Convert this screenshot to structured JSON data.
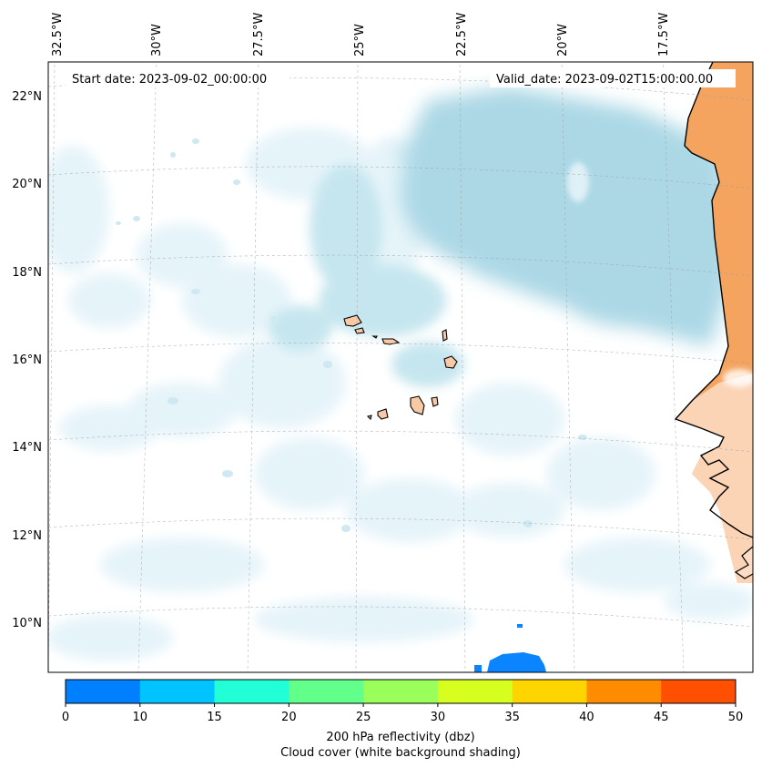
{
  "header": {
    "start_label": "Start date: 2023-09-02_00:00:00",
    "valid_label": "Valid_date: 2023-09-02T15:00:00.00"
  },
  "map": {
    "top_longitude_labels": [
      "32.5°W",
      "30°W",
      "27.5°W",
      "25°W",
      "22.5°W",
      "20°W",
      "17.5°W"
    ],
    "left_latitude_labels": [
      "22°N",
      "20°N",
      "18°N",
      "16°N",
      "14°N",
      "12°N",
      "10°N"
    ],
    "gridlines": true,
    "projection": "Lambert conformal (curved graticule)",
    "layers": {
      "cloud_cover_shading": "light blue / white",
      "land": "Africa coast (orange), Cape Verde islands (peach)"
    }
  },
  "colorbar": {
    "tick_labels": [
      "0",
      "10",
      "15",
      "20",
      "25",
      "30",
      "35",
      "40",
      "45",
      "50"
    ],
    "colors": [
      "#0080ff",
      "#00c3ff",
      "#22ffd6",
      "#62ff8a",
      "#9aff5a",
      "#d6ff1f",
      "#ffd500",
      "#ff8c00",
      "#ff4f00"
    ],
    "label_line1": "200 hPa reflectivity (dbz)",
    "label_line2": "Cloud cover (white background shading)"
  },
  "colors": {
    "cloud": "#acd8e6",
    "land_africa": "#f4a45e",
    "land_islands": "#f7c9a5",
    "reflectivity_patch": "#0a84ff"
  }
}
